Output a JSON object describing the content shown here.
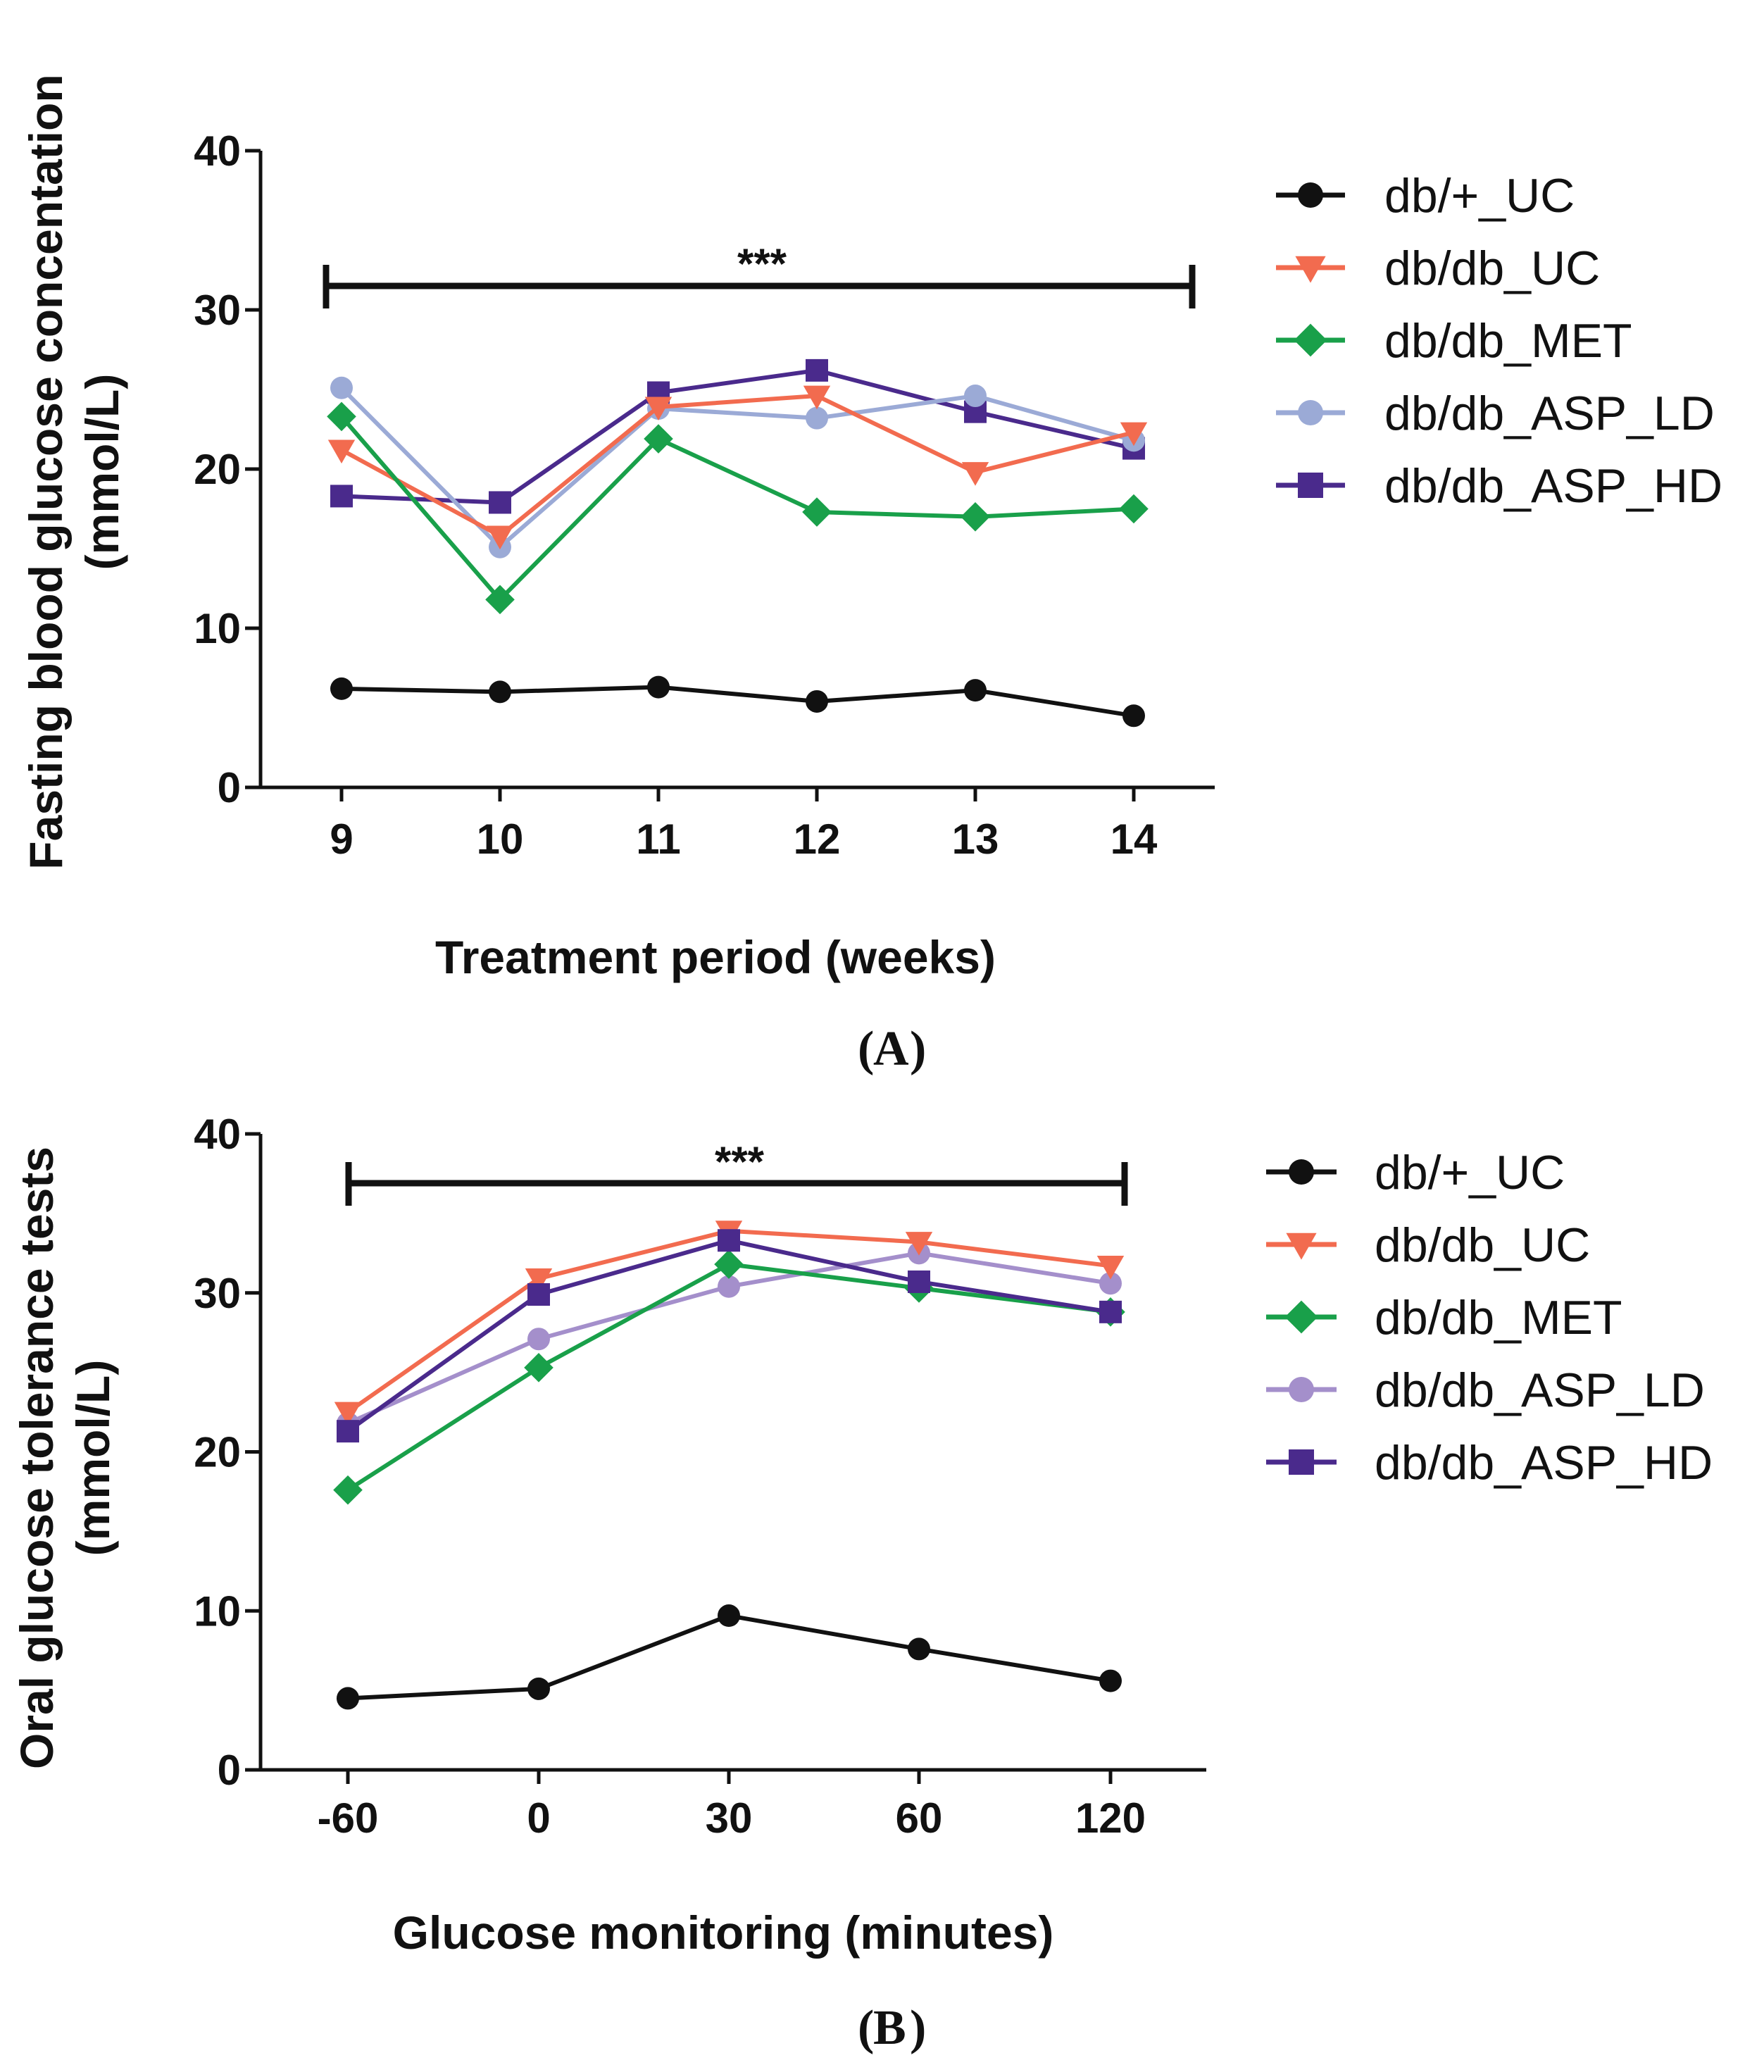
{
  "chart_data": [
    {
      "type": "line",
      "panel_label": "A",
      "xlabel": "Treatment period (weeks)",
      "ylabel": "Fasting blood glucose concentation",
      "ylabel_units": "(mmol/L)",
      "categories": [
        "9",
        "10",
        "11",
        "12",
        "13",
        "14"
      ],
      "ylim": [
        0,
        40
      ],
      "yticks": [
        "0",
        "10",
        "20",
        "30",
        "40"
      ],
      "yticks_values": [
        0,
        10,
        20,
        30,
        40
      ],
      "significance": "***",
      "legend_position": "right",
      "series": [
        {
          "name": "db/+_UC",
          "color": "#111111",
          "marker": "circle",
          "values": [
            6.2,
            6.0,
            6.3,
            5.4,
            6.1,
            4.5
          ]
        },
        {
          "name": "db/db_UC",
          "color": "#F26B4F",
          "marker": "triangle-down",
          "values": [
            21.2,
            15.8,
            23.9,
            24.6,
            19.8,
            22.3
          ]
        },
        {
          "name": "db/db_MET",
          "color": "#19A04A",
          "marker": "diamond",
          "values": [
            23.3,
            11.8,
            21.9,
            17.3,
            17.0,
            17.5
          ]
        },
        {
          "name": "db/db_ASP_LD",
          "color": "#9BAAD6",
          "marker": "circle",
          "values": [
            25.1,
            15.1,
            23.8,
            23.2,
            24.6,
            21.8
          ]
        },
        {
          "name": "db/db_ASP_HD",
          "color": "#4A2A8C",
          "marker": "square",
          "values": [
            18.3,
            17.9,
            24.8,
            26.2,
            23.6,
            21.3
          ]
        }
      ]
    },
    {
      "type": "line",
      "panel_label": "B",
      "xlabel": "Glucose monitoring (minutes)",
      "ylabel": "Oral glucose tolerance tests",
      "ylabel_units": "(mmol/L)",
      "categories": [
        "-60",
        "0",
        "30",
        "60",
        "120"
      ],
      "ylim": [
        0,
        40
      ],
      "yticks": [
        "0",
        "10",
        "20",
        "30",
        "40"
      ],
      "yticks_values": [
        0,
        10,
        20,
        30,
        40
      ],
      "significance": "***",
      "legend_position": "right",
      "series": [
        {
          "name": "db/+_UC",
          "color": "#111111",
          "marker": "circle",
          "values": [
            4.5,
            5.1,
            9.7,
            7.6,
            5.6
          ]
        },
        {
          "name": "db/db_UC",
          "color": "#F26B4F",
          "marker": "triangle-down",
          "values": [
            22.5,
            30.9,
            33.9,
            33.2,
            31.7
          ]
        },
        {
          "name": "db/db_MET",
          "color": "#19A04A",
          "marker": "diamond",
          "values": [
            17.6,
            25.3,
            31.8,
            30.3,
            28.8
          ]
        },
        {
          "name": "db/db_ASP_LD",
          "color": "#A48FCB",
          "marker": "circle",
          "values": [
            21.8,
            27.1,
            30.4,
            32.5,
            30.6
          ]
        },
        {
          "name": "db/db_ASP_HD",
          "color": "#4A2A8C",
          "marker": "square",
          "values": [
            21.3,
            29.9,
            33.3,
            30.7,
            28.8
          ]
        }
      ]
    }
  ]
}
